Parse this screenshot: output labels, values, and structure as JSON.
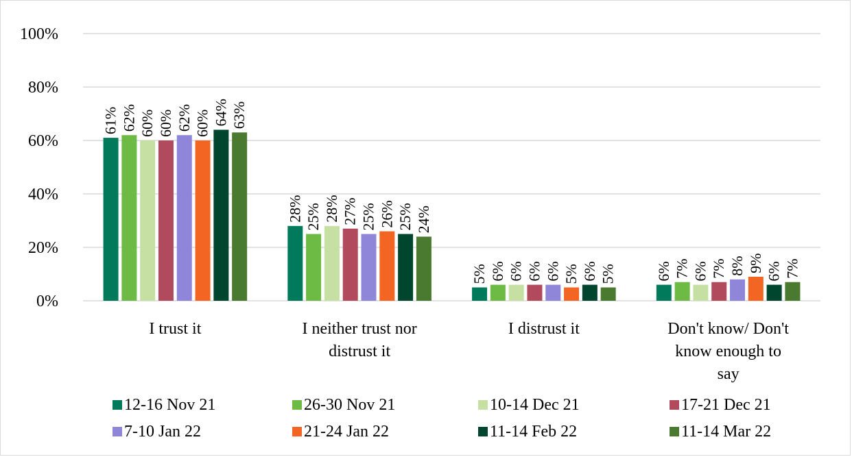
{
  "chart_data": {
    "type": "bar",
    "title": "",
    "xlabel": "",
    "ylabel": "",
    "ylim": [
      0,
      100
    ],
    "y_ticks": [
      "0%",
      "20%",
      "40%",
      "60%",
      "80%",
      "100%"
    ],
    "y_tick_values": [
      0,
      20,
      40,
      60,
      80,
      100
    ],
    "grid": true,
    "legend_placement": "bottom",
    "categories": [
      "I trust it",
      "I neither trust nor distrust it",
      "I distrust it",
      "Don't know/ Don't know enough to say"
    ],
    "category_label_lines": [
      [
        "I trust it"
      ],
      [
        "I neither trust nor",
        "distrust it"
      ],
      [
        "I distrust it"
      ],
      [
        "Don't know/ Don't",
        "know enough to",
        "say"
      ]
    ],
    "series": [
      {
        "name": "12-16 Nov 21",
        "color": "#007a5a",
        "values": [
          61,
          28,
          5,
          6
        ],
        "labels": [
          "61%",
          "28%",
          "5%",
          "6%"
        ]
      },
      {
        "name": "26-30 Nov 21",
        "color": "#6dbb45",
        "values": [
          62,
          25,
          6,
          7
        ],
        "labels": [
          "62%",
          "25%",
          "6%",
          "7%"
        ]
      },
      {
        "name": "10-14 Dec 21",
        "color": "#c6dfa3",
        "values": [
          60,
          28,
          6,
          6
        ],
        "labels": [
          "60%",
          "28%",
          "6%",
          "6%"
        ]
      },
      {
        "name": "17-21 Dec 21",
        "color": "#b24a5e",
        "values": [
          60,
          27,
          6,
          7
        ],
        "labels": [
          "60%",
          "27%",
          "6%",
          "7%"
        ]
      },
      {
        "name": "7-10 Jan 22",
        "color": "#8f86da",
        "values": [
          62,
          25,
          6,
          8
        ],
        "labels": [
          "62%",
          "25%",
          "6%",
          "8%"
        ]
      },
      {
        "name": "21-24 Jan 22",
        "color": "#f26522",
        "values": [
          60,
          26,
          5,
          9
        ],
        "labels": [
          "60%",
          "26%",
          "5%",
          "9%"
        ]
      },
      {
        "name": "11-14 Feb 22",
        "color": "#00452d",
        "values": [
          64,
          25,
          6,
          6
        ],
        "labels": [
          "64%",
          "25%",
          "6%",
          "6%"
        ]
      },
      {
        "name": "11-14 Mar 22",
        "color": "#4a7a30",
        "values": [
          63,
          24,
          5,
          7
        ],
        "labels": [
          "63%",
          "24%",
          "5%",
          "7%"
        ]
      }
    ],
    "gridline_color": "#d9d9d9"
  }
}
